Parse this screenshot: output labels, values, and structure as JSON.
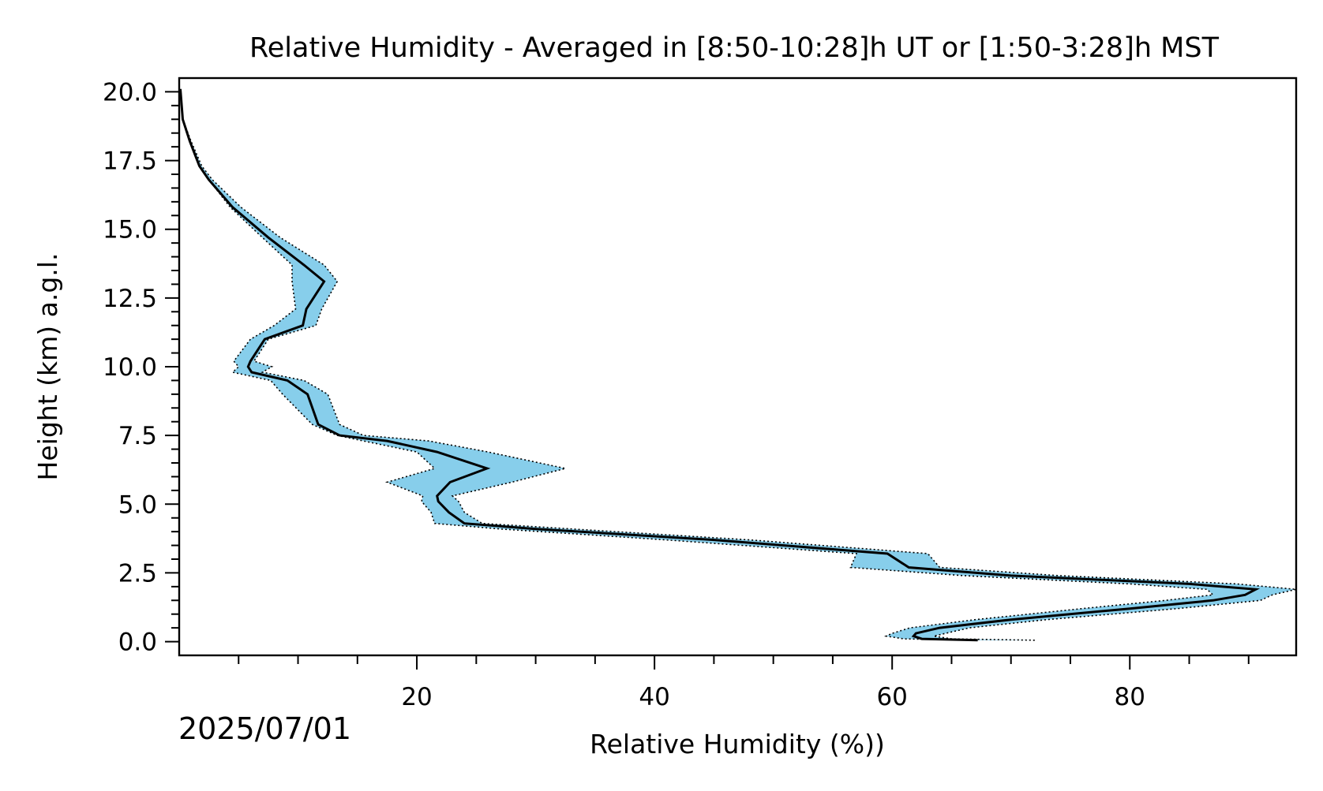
{
  "chart_data": {
    "type": "area",
    "title": "Relative Humidity - Averaged in [8:50-10:28]h UT or [1:50-3:28]h MST",
    "xlabel": "Relative Humidity (%))",
    "ylabel": "Height (km) a.g.l.",
    "date": "2025/07/01",
    "xlim": [
      0,
      94
    ],
    "ylim": [
      -0.5,
      20.5
    ],
    "x_ticks": [
      20,
      40,
      60,
      80
    ],
    "x_tick_labels": [
      "20",
      "40",
      "60",
      "80"
    ],
    "y_ticks": [
      0.0,
      2.5,
      5.0,
      7.5,
      10.0,
      12.5,
      15.0,
      17.5,
      20.0
    ],
    "y_tick_labels": [
      "0.0",
      "2.5",
      "5.0",
      "7.5",
      "10.0",
      "12.5",
      "15.0",
      "17.5",
      "20.0"
    ],
    "grid": false,
    "colors": {
      "band": "#87ceeb",
      "line": "#000000",
      "band_edge": "#000000"
    },
    "series": [
      {
        "type": "line",
        "x": [
          67.2,
          62.5,
          61.8,
          62.0,
          64.0,
          70.0,
          80.0,
          87.0,
          89.7,
          90.6,
          85.0,
          70.0,
          61.4,
          59.6,
          45.0,
          30.0,
          24.0,
          22.7,
          21.8,
          21.7,
          22.8,
          25.9,
          21.7,
          17.5,
          13.5,
          11.7,
          10.8,
          9.1,
          6.1,
          5.8,
          6.0,
          7.2,
          10.4,
          10.7,
          12.2,
          10.5,
          7.5,
          4.5,
          2.5,
          1.7,
          0.9,
          0.3,
          0.1
        ],
        "y": [
          0.05,
          0.1,
          0.2,
          0.3,
          0.5,
          0.8,
          1.2,
          1.5,
          1.7,
          1.9,
          2.1,
          2.4,
          2.7,
          3.2,
          3.7,
          4.1,
          4.3,
          4.7,
          5.1,
          5.3,
          5.8,
          6.3,
          6.9,
          7.3,
          7.5,
          7.9,
          9.0,
          9.5,
          9.8,
          10.0,
          10.2,
          11.0,
          11.5,
          12.1,
          13.1,
          13.7,
          14.7,
          15.8,
          16.8,
          17.3,
          18.2,
          19.0,
          20.1
        ]
      },
      {
        "type": "band",
        "x_low": [
          67.2,
          61.0,
          59.5,
          60.0,
          61.5,
          67.0,
          76.0,
          83.0,
          87.0,
          86.5,
          80.0,
          66.0,
          56.5,
          57.0,
          41.0,
          27.0,
          21.5,
          21.2,
          20.4,
          20.5,
          17.5,
          21.5,
          20.0,
          15.5,
          13.3,
          11.2,
          8.7,
          7.7,
          4.5,
          5.0,
          4.6,
          6.0,
          8.0,
          9.8,
          9.5,
          9.5,
          7.0,
          4.3,
          2.5,
          1.7,
          0.9,
          0.3,
          0.1
        ],
        "x_high": [
          72.0,
          65.0,
          63.5,
          64.5,
          66.5,
          73.0,
          84.0,
          91.0,
          92.0,
          94.0,
          89.0,
          74.0,
          64.0,
          63.0,
          48.0,
          33.0,
          25.5,
          24.0,
          23.5,
          23.0,
          28.0,
          32.5,
          26.0,
          21.0,
          15.5,
          13.5,
          12.5,
          10.5,
          7.0,
          7.8,
          6.3,
          7.5,
          11.5,
          12.0,
          13.3,
          12.2,
          8.5,
          5.2,
          2.8,
          1.9,
          1.0,
          0.3,
          0.1
        ],
        "y": [
          0.05,
          0.1,
          0.2,
          0.3,
          0.5,
          0.8,
          1.2,
          1.5,
          1.7,
          1.9,
          2.1,
          2.4,
          2.7,
          3.2,
          3.7,
          4.1,
          4.3,
          4.7,
          5.1,
          5.3,
          5.8,
          6.3,
          6.9,
          7.3,
          7.5,
          7.9,
          9.0,
          9.5,
          9.8,
          10.0,
          10.2,
          11.0,
          11.5,
          12.1,
          13.1,
          13.7,
          14.7,
          15.8,
          16.8,
          17.3,
          18.2,
          19.0,
          20.1
        ]
      }
    ]
  }
}
